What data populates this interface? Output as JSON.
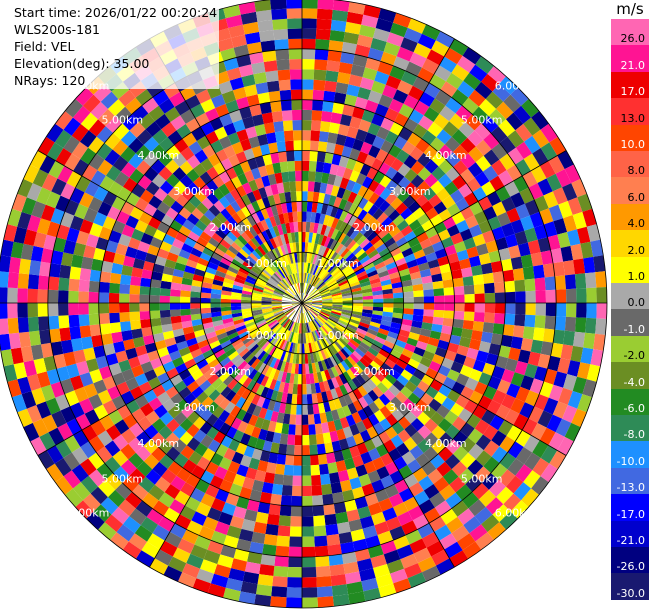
{
  "header": {
    "start_time": "Start time: 2026/01/22 00:20:24",
    "instrument": "WLS200s-181",
    "field": "Field: VEL",
    "elevation": "Elevation(deg): 35.00",
    "nrays": "NRays: 120"
  },
  "chart_data": {
    "type": "heatmap",
    "projection": "polar-ppi",
    "field": "VEL",
    "units_label": "m/s",
    "n_rays": 120,
    "elevation_deg": 35.0,
    "max_range_km": 6.0,
    "range_rings_km": [
      1,
      2,
      3,
      4,
      5,
      6
    ],
    "ring_labels": [
      "1.00km",
      "2.00km",
      "3.00km",
      "4.00km",
      "5.00km",
      "6.00km"
    ],
    "colorbar": {
      "tick_labels": [
        "26.0",
        "21.0",
        "17.0",
        "13.0",
        "10.0",
        "8.0",
        "6.0",
        "4.0",
        "2.0",
        "1.0",
        "0.0",
        "-1.0",
        "-2.0",
        "-4.0",
        "-6.0",
        "-8.0",
        "-10.0",
        "-13.0",
        "-17.0",
        "-21.0",
        "-26.0",
        "-30.0"
      ],
      "colors": [
        "#ff66b3",
        "#ff1493",
        "#ee0000",
        "#ff3030",
        "#ff4500",
        "#ff6347",
        "#ff7f50",
        "#ff9900",
        "#ffd700",
        "#ffff00",
        "#a9a9a9",
        "#696969",
        "#9acd32",
        "#6b8e23",
        "#228b22",
        "#2e8b57",
        "#1e90ff",
        "#4169e1",
        "#0000ff",
        "#0000cd",
        "#000080",
        "#191970"
      ]
    }
  }
}
